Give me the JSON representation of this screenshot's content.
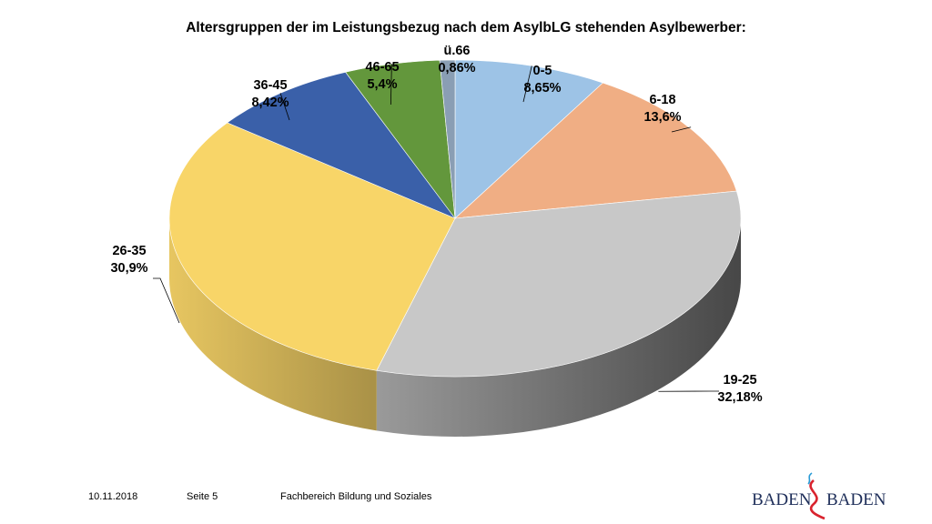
{
  "chart_data": {
    "type": "pie",
    "title": "Altersgruppen der im Leistungsbezug nach dem AsylbLG stehenden Asylbewerber:",
    "slices": [
      {
        "label": "0-5",
        "value": 8.65,
        "display": "8,65%",
        "color": "#9dc3e6"
      },
      {
        "label": "6-18",
        "value": 13.6,
        "display": "13,6%",
        "color": "#f0ae84"
      },
      {
        "label": "19-25",
        "value": 32.18,
        "display": "32,18%",
        "color": "#c8c8c8"
      },
      {
        "label": "26-35",
        "value": 30.9,
        "display": "30,9%",
        "color": "#f8d568"
      },
      {
        "label": "36-45",
        "value": 8.42,
        "display": "8,42%",
        "color": "#3a60a9"
      },
      {
        "label": "46-65",
        "value": 5.4,
        "display": "5,4%",
        "color": "#63973c"
      },
      {
        "label": "ü.66",
        "value": 0.86,
        "display": "0,86%",
        "color": "#8a9eb4"
      }
    ]
  },
  "footer": {
    "date": "10.11.2018",
    "page": "Seite 5",
    "department": "Fachbereich Bildung und Soziales"
  },
  "logo": {
    "left": "BADEN",
    "right": "BADEN",
    "colors": {
      "text": "#1f2f5a",
      "wave_red": "#d9232e",
      "wave_blue": "#2a9bd6"
    }
  }
}
